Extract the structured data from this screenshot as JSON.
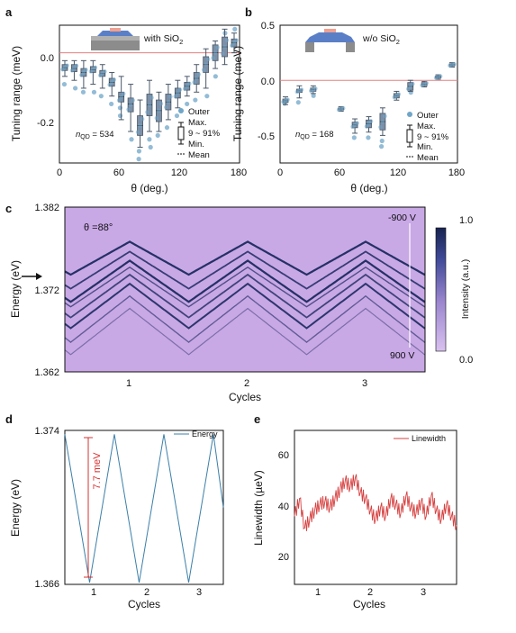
{
  "colors": {
    "box": "#7d8fa6",
    "box_edge": "#4a5868",
    "scatter": "#6fa6c8",
    "zero_line": "#e58080",
    "energy_line": "#3a7fa8",
    "linewidth_line": "#d64040",
    "annot": "#d63030",
    "heat_low": "#c9a8e6",
    "heat_high": "#1b2a5e"
  },
  "chart_data": [
    {
      "panel": "a",
      "type": "box",
      "xlabel": "θ (deg.)",
      "ylabel": "Tuning range (meV)",
      "xlim": [
        0,
        180
      ],
      "ylim": [
        -0.28,
        0.07
      ],
      "xticks": [
        "0",
        "60",
        "120",
        "180"
      ],
      "yticks": [
        "0.0",
        "-0.2"
      ],
      "inset_label": "with SiO",
      "inset_sub": "2",
      "n_label": "n",
      "n_sub": "QD",
      "n_value": " = 534",
      "legend": [
        "Outer",
        "Max.",
        "9 ~ 91%",
        "Min.",
        "Mean"
      ],
      "x": [
        0,
        10,
        20,
        30,
        40,
        50,
        60,
        70,
        80,
        90,
        100,
        110,
        120,
        130,
        140,
        150,
        160,
        170,
        180
      ],
      "q1": [
        -0.045,
        -0.048,
        -0.06,
        -0.05,
        -0.06,
        -0.085,
        -0.125,
        -0.15,
        -0.21,
        -0.16,
        -0.175,
        -0.145,
        -0.115,
        -0.095,
        -0.08,
        -0.05,
        -0.02,
        -0.01,
        0.015
      ],
      "q3": [
        -0.03,
        -0.03,
        -0.04,
        -0.035,
        -0.045,
        -0.065,
        -0.1,
        -0.115,
        -0.16,
        -0.105,
        -0.12,
        -0.105,
        -0.09,
        -0.075,
        -0.05,
        -0.01,
        0.02,
        0.04,
        0.035
      ],
      "wlo": [
        -0.06,
        -0.07,
        -0.09,
        -0.08,
        -0.09,
        -0.11,
        -0.17,
        -0.2,
        -0.24,
        -0.2,
        -0.2,
        -0.17,
        -0.14,
        -0.11,
        -0.1,
        -0.09,
        -0.04,
        -0.03,
        0.0
      ],
      "whi": [
        -0.02,
        -0.02,
        -0.02,
        -0.02,
        -0.03,
        -0.05,
        -0.06,
        -0.08,
        -0.12,
        -0.07,
        -0.1,
        -0.08,
        -0.07,
        -0.06,
        -0.03,
        0.01,
        0.03,
        0.06,
        0.05
      ],
      "mean": [
        -0.038,
        -0.04,
        -0.05,
        -0.043,
        -0.053,
        -0.075,
        -0.112,
        -0.13,
        -0.185,
        -0.132,
        -0.147,
        -0.125,
        -0.102,
        -0.085,
        -0.065,
        -0.03,
        0.0,
        0.015,
        0.025
      ],
      "outer": [
        [
          0,
          -0.08
        ],
        [
          10,
          -0.09
        ],
        [
          20,
          -0.1
        ],
        [
          30,
          -0.1
        ],
        [
          40,
          -0.11
        ],
        [
          50,
          -0.13
        ],
        [
          60,
          -0.14
        ],
        [
          60,
          -0.16
        ],
        [
          70,
          -0.22
        ],
        [
          80,
          -0.25
        ],
        [
          80,
          -0.27
        ],
        [
          90,
          -0.22
        ],
        [
          90,
          -0.24
        ],
        [
          100,
          -0.21
        ],
        [
          110,
          -0.19
        ],
        [
          120,
          -0.16
        ],
        [
          130,
          -0.13
        ],
        [
          140,
          -0.12
        ],
        [
          150,
          -0.11
        ],
        [
          160,
          -0.06
        ],
        [
          170,
          0.05
        ],
        [
          180,
          0.06
        ]
      ]
    },
    {
      "panel": "b",
      "type": "box",
      "xlabel": "θ (deg.)",
      "ylabel": "Tuning range (meV)",
      "xlim": [
        0,
        180
      ],
      "ylim": [
        -0.75,
        0.5
      ],
      "xticks": [
        "0",
        "60",
        "120",
        "180"
      ],
      "yticks": [
        "0.5",
        "0.0",
        "-0.5"
      ],
      "inset_label": "w/o SiO",
      "inset_sub": "2",
      "n_label": "n",
      "n_sub": "QD",
      "n_value": " = 168",
      "legend": [
        "Outer",
        "Max.",
        "9 ~ 91%",
        "Min.",
        "Mean"
      ],
      "x": [
        0,
        15,
        30,
        60,
        75,
        90,
        105,
        120,
        135,
        150,
        165,
        180
      ],
      "q1": [
        -0.2,
        -0.11,
        -0.1,
        -0.27,
        -0.43,
        -0.43,
        -0.45,
        -0.16,
        -0.09,
        -0.05,
        0.02,
        0.13
      ],
      "q3": [
        -0.17,
        -0.08,
        -0.07,
        -0.25,
        -0.38,
        -0.36,
        -0.3,
        -0.12,
        -0.02,
        -0.02,
        0.04,
        0.15
      ],
      "wlo": [
        -0.22,
        -0.16,
        -0.12,
        -0.28,
        -0.48,
        -0.47,
        -0.5,
        -0.18,
        -0.1,
        -0.06,
        0.01,
        0.12
      ],
      "whi": [
        -0.15,
        -0.05,
        -0.05,
        -0.24,
        -0.35,
        -0.33,
        -0.25,
        -0.1,
        0.0,
        -0.01,
        0.05,
        0.16
      ],
      "mean": [
        -0.185,
        -0.095,
        -0.085,
        -0.26,
        -0.405,
        -0.395,
        -0.375,
        -0.14,
        -0.055,
        -0.035,
        0.03,
        0.14
      ],
      "outer": [
        [
          0,
          -0.21
        ],
        [
          15,
          -0.2
        ],
        [
          30,
          -0.14
        ],
        [
          75,
          -0.52
        ],
        [
          90,
          -0.52
        ],
        [
          105,
          -0.55
        ],
        [
          105,
          -0.6
        ],
        [
          135,
          -0.11
        ]
      ]
    },
    {
      "panel": "c",
      "type": "heatmap",
      "xlabel": "Cycles",
      "ylabel": "Energy (eV)",
      "xticks": [
        "1",
        "2",
        "3"
      ],
      "yticks": [
        "1.382",
        "1.372",
        "1.362"
      ],
      "ylim": [
        1.362,
        1.382
      ],
      "annotation": "θ =88°",
      "voltage_top": "-900 V",
      "voltage_bottom": "900 V",
      "colorbar_label": "Intensity (a.u.)",
      "colorbar_ticks": [
        "1.0",
        "0.0"
      ]
    },
    {
      "panel": "d",
      "type": "line",
      "xlabel": "Cycles",
      "ylabel": "Energy (eV)",
      "xticks": [
        "1",
        "2",
        "3"
      ],
      "yticks": [
        "1.374",
        "1.366"
      ],
      "ylim": [
        1.366,
        1.374
      ],
      "xlim": [
        0.5,
        3.7
      ],
      "series": [
        {
          "name": "Energy",
          "x": [
            0.5,
            1.0,
            1.5,
            2.0,
            2.5,
            3.0,
            3.5,
            3.7
          ],
          "y": [
            1.3738,
            1.3661,
            1.3738,
            1.3661,
            1.3738,
            1.3661,
            1.3738,
            1.37
          ]
        }
      ],
      "annotation": "7.7 meV"
    },
    {
      "panel": "e",
      "type": "line",
      "xlabel": "Cycles",
      "ylabel": "Linewidth (µeV)",
      "xticks": [
        "1",
        "2",
        "3"
      ],
      "yticks": [
        "60",
        "40",
        "20"
      ],
      "ylim": [
        15,
        67
      ],
      "xlim": [
        0.5,
        3.7
      ],
      "series": [
        {
          "name": "Linewidth",
          "x": [
            0.5,
            0.6,
            0.7,
            0.8,
            0.9,
            1.0,
            1.1,
            1.2,
            1.3,
            1.4,
            1.5,
            1.6,
            1.7,
            1.8,
            1.9,
            2.0,
            2.1,
            2.2,
            2.3,
            2.4,
            2.5,
            2.6,
            2.7,
            2.8,
            2.9,
            3.0,
            3.1,
            3.2,
            3.3,
            3.4,
            3.5,
            3.6,
            3.7
          ],
          "y": [
            38,
            44,
            34,
            37,
            40,
            42,
            43,
            41,
            44,
            47,
            50,
            48,
            51,
            46,
            44,
            40,
            37,
            41,
            38,
            44,
            42,
            39,
            45,
            41,
            39,
            43,
            38,
            45,
            40,
            37,
            42,
            38,
            35
          ]
        }
      ]
    }
  ]
}
